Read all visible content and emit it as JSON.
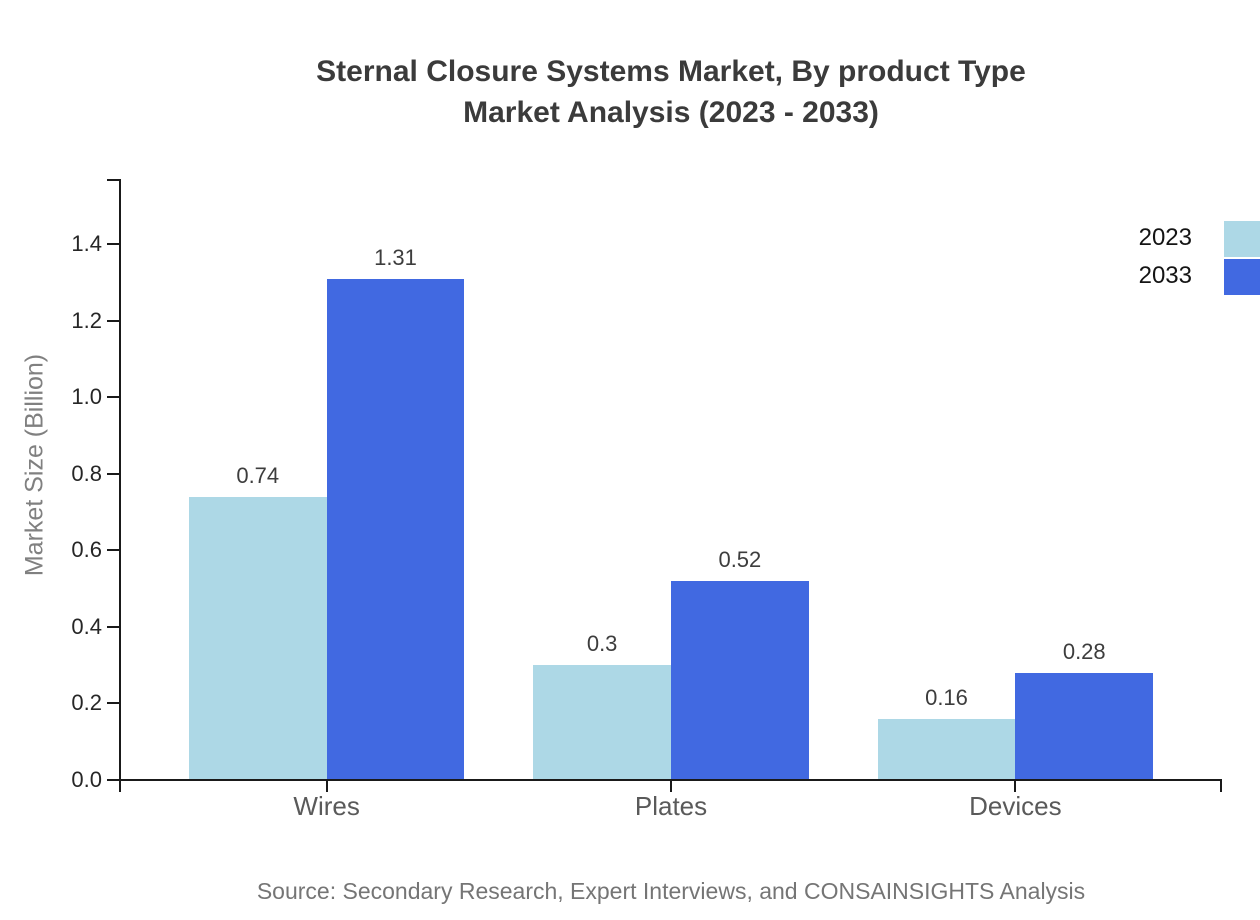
{
  "chart_data": {
    "type": "bar",
    "title_line1": "Sternal Closure Systems Market, By product Type",
    "title_line2": "Market Analysis (2023 - 2033)",
    "ylabel": "Market Size (Billion)",
    "xlabel": "",
    "categories": [
      "Wires",
      "Plates",
      "Devices"
    ],
    "series": [
      {
        "name": "2023",
        "color": "#ADD8E6",
        "values": [
          0.74,
          0.3,
          0.16
        ]
      },
      {
        "name": "2033",
        "color": "#4169E1",
        "values": [
          1.31,
          0.52,
          0.28
        ]
      }
    ],
    "y_ticks": [
      "0.0",
      "0.2",
      "0.4",
      "0.6",
      "0.8",
      "1.0",
      "1.2",
      "1.4"
    ],
    "ylim": [
      0,
      1.5675
    ],
    "xlim": [
      -0.6,
      2.6
    ],
    "grid": false,
    "legend_position": "top-right-outside",
    "axis_color": "#1a1a1a"
  },
  "source": {
    "text": "Source: Secondary Research, Expert Interviews, and CONSAINSIGHTS Analysis"
  }
}
